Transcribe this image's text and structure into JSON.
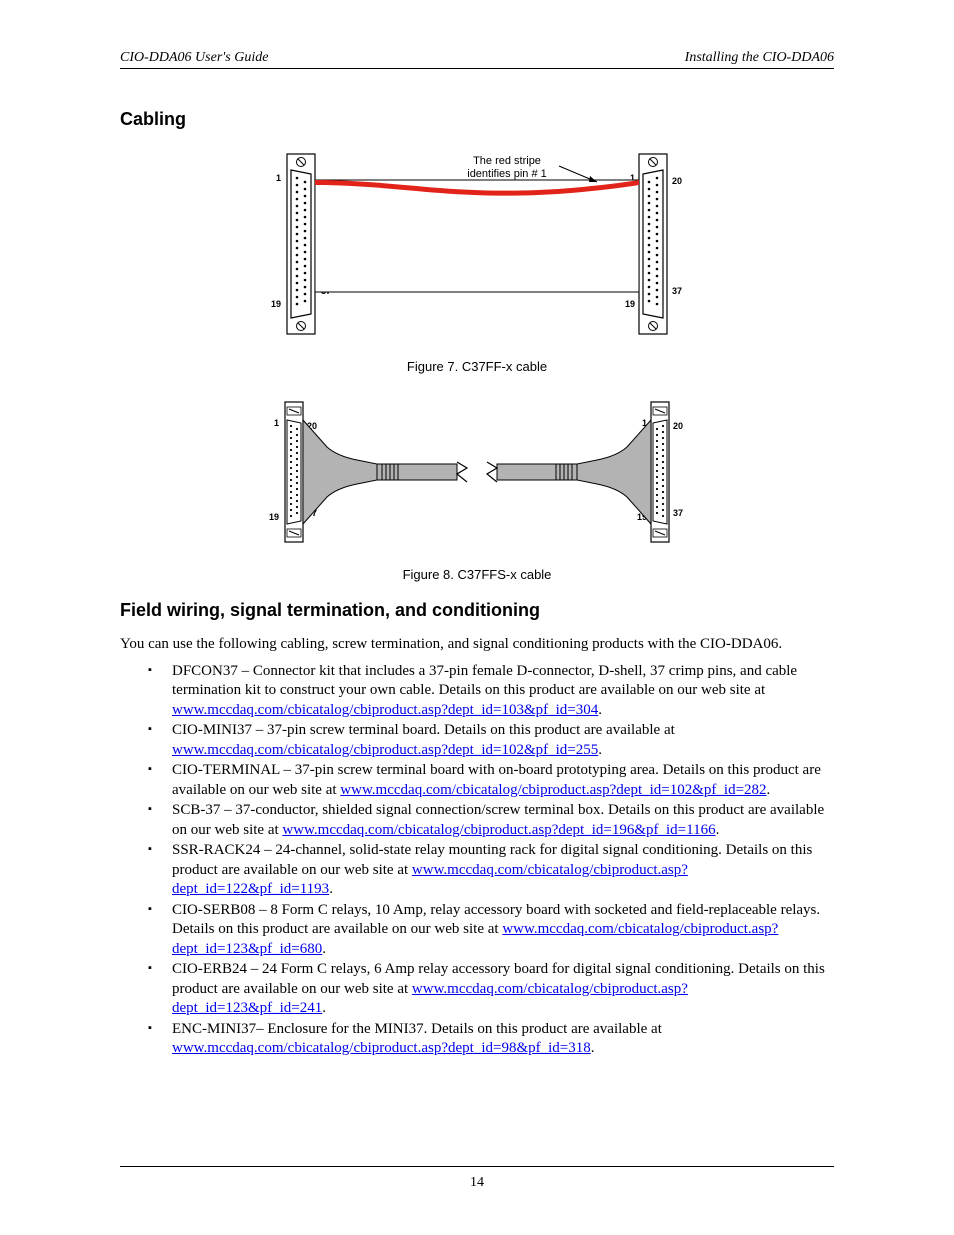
{
  "header": {
    "left": "CIO-DDA06 User's Guide",
    "right": "Installing the CIO-DDA06"
  },
  "section1": {
    "title": "Cabling"
  },
  "figure7": {
    "caption": "Figure 7. C37FF-x cable",
    "annotation_line1": "The red stripe",
    "annotation_line2": "identifies pin # 1",
    "pins": {
      "p1": "1",
      "p19": "19",
      "p20": "20",
      "p37": "37"
    },
    "colors": {
      "red_stripe": "#e2231a",
      "cable_fill": "#ffffff",
      "outline": "#000000"
    }
  },
  "figure8": {
    "caption": "Figure 8. C37FFS-x cable",
    "pins": {
      "p1": "1",
      "p19": "19",
      "p20": "20",
      "p37": "37"
    },
    "colors": {
      "cable_fill": "#b3b3b3",
      "outline": "#000000"
    }
  },
  "section2": {
    "title": "Field wiring, signal termination, and conditioning",
    "intro": "You can use the following cabling, screw termination, and signal conditioning products with the CIO-DDA06.",
    "items": [
      {
        "text1": "DFCON37 – Connector kit that includes a 37-pin female D-connector, D-shell, 37 crimp pins, and cable termination kit to construct your own cable. Details on this product are available on our web site at ",
        "link": "www.mccdaq.com/cbicatalog/cbiproduct.asp?dept_id=103&pf_id=304",
        "text2": "."
      },
      {
        "text1": "CIO-MINI37 – 37-pin screw terminal board. Details on this product are available at ",
        "link": "www.mccdaq.com/cbicatalog/cbiproduct.asp?dept_id=102&pf_id=255",
        "text2": "."
      },
      {
        "text1": "CIO-TERMINAL – 37-pin screw terminal board with on-board prototyping area. Details on this product are available on our web site at ",
        "link": "www.mccdaq.com/cbicatalog/cbiproduct.asp?dept_id=102&pf_id=282",
        "text2": "."
      },
      {
        "text1": "SCB-37 – 37-conductor, shielded signal connection/screw terminal box. Details on this product are available on our web site at ",
        "link": "www.mccdaq.com/cbicatalog/cbiproduct.asp?dept_id=196&pf_id=1166",
        "text2": "."
      },
      {
        "text1": "SSR-RACK24 – 24-channel, solid-state relay mounting rack for digital signal conditioning. Details on this product are available on our web site at ",
        "link": "www.mccdaq.com/cbicatalog/cbiproduct.asp?dept_id=122&pf_id=1193",
        "text2": "."
      },
      {
        "text1": "CIO-SERB08 – 8 Form C relays, 10 Amp, relay accessory board with socketed and field-replaceable relays. Details on this product are available on our web site at ",
        "link": "www.mccdaq.com/cbicatalog/cbiproduct.asp?dept_id=123&pf_id=680",
        "text2": "."
      },
      {
        "text1": "CIO-ERB24 – 24 Form C relays, 6 Amp relay accessory board for digital signal conditioning. Details on this product are available on our web site at ",
        "link": "www.mccdaq.com/cbicatalog/cbiproduct.asp?dept_id=123&pf_id=241",
        "text2": "."
      },
      {
        "text1": "ENC-MINI37– Enclosure for the MINI37. Details on this product are available at ",
        "link": "www.mccdaq.com/cbicatalog/cbiproduct.asp?dept_id=98&pf_id=318",
        "text2": "."
      }
    ]
  },
  "footer": {
    "page_number": "14"
  }
}
